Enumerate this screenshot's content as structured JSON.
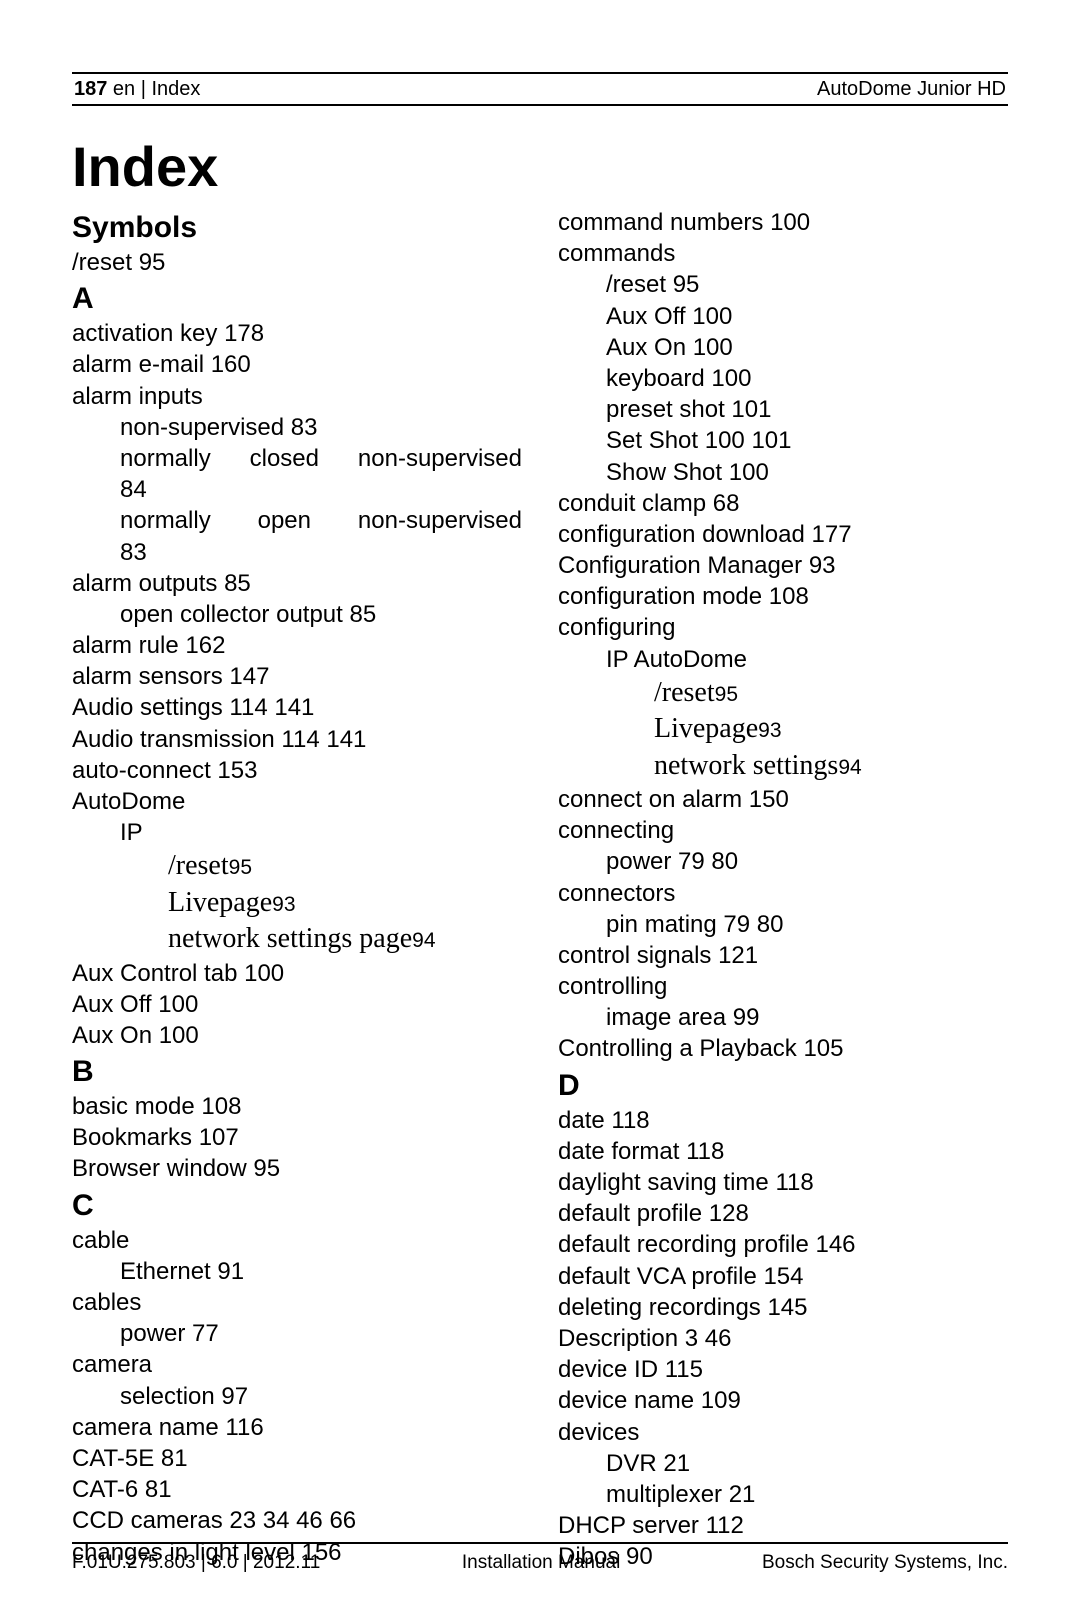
{
  "header": {
    "page_num": "187",
    "left_rest": " en | Index",
    "right": "AutoDome Junior HD"
  },
  "title": "Index",
  "footer": {
    "left": "F.01U.275.803 | 6.0 | 2012.11",
    "center": "Installation Manual",
    "right": "Bosch Security Systems, Inc."
  },
  "col_left": [
    {
      "t": "head",
      "v": "Symbols"
    },
    {
      "t": "line",
      "lvl": 0,
      "v": "/reset 95"
    },
    {
      "t": "head",
      "v": "A"
    },
    {
      "t": "line",
      "lvl": 0,
      "v": "activation key 178"
    },
    {
      "t": "line",
      "lvl": 0,
      "v": "alarm e-mail 160"
    },
    {
      "t": "line",
      "lvl": 0,
      "v": "alarm inputs"
    },
    {
      "t": "line",
      "lvl": 1,
      "v": "non-supervised 83"
    },
    {
      "t": "line",
      "lvl": 1,
      "justify": true,
      "v": "normally closed non-supervised"
    },
    {
      "t": "line",
      "lvl": 1,
      "v": "84"
    },
    {
      "t": "line",
      "lvl": 1,
      "justify": true,
      "v": "normally open non-supervised"
    },
    {
      "t": "line",
      "lvl": 1,
      "v": "83"
    },
    {
      "t": "line",
      "lvl": 0,
      "v": "alarm outputs 85"
    },
    {
      "t": "line",
      "lvl": 1,
      "v": "open collector output 85"
    },
    {
      "t": "line",
      "lvl": 0,
      "v": "alarm rule 162"
    },
    {
      "t": "line",
      "lvl": 0,
      "v": "alarm sensors 147"
    },
    {
      "t": "line",
      "lvl": 0,
      "v": "Audio settings 114, 141",
      "commas": true
    },
    {
      "t": "line",
      "lvl": 0,
      "v": "Audio transmission 114, 141",
      "commas": true
    },
    {
      "t": "line",
      "lvl": 0,
      "v": "auto-connect 153"
    },
    {
      "t": "line",
      "lvl": 0,
      "v": "AutoDome"
    },
    {
      "t": "line",
      "lvl": 1,
      "v": "IP"
    },
    {
      "t": "ser",
      "lvl": 2,
      "label": "/reset",
      "pg": "95"
    },
    {
      "t": "ser",
      "lvl": 2,
      "label": "Livepage",
      "pg": "93"
    },
    {
      "t": "ser",
      "lvl": 2,
      "label": "network settings page",
      "pg": "94"
    },
    {
      "t": "line",
      "lvl": 0,
      "v": "Aux Control tab 100"
    },
    {
      "t": "line",
      "lvl": 0,
      "v": "Aux Off 100"
    },
    {
      "t": "line",
      "lvl": 0,
      "v": "Aux On 100"
    },
    {
      "t": "head",
      "v": "B"
    },
    {
      "t": "line",
      "lvl": 0,
      "v": "basic mode 108"
    },
    {
      "t": "line",
      "lvl": 0,
      "v": "Bookmarks 107"
    },
    {
      "t": "line",
      "lvl": 0,
      "v": "Browser window 95"
    },
    {
      "t": "head",
      "v": "C"
    },
    {
      "t": "line",
      "lvl": 0,
      "v": "cable"
    },
    {
      "t": "line",
      "lvl": 1,
      "v": "Ethernet 91"
    },
    {
      "t": "line",
      "lvl": 0,
      "v": "cables"
    },
    {
      "t": "line",
      "lvl": 1,
      "v": "power 77"
    },
    {
      "t": "line",
      "lvl": 0,
      "v": "camera"
    },
    {
      "t": "line",
      "lvl": 1,
      "v": "selection 97"
    },
    {
      "t": "line",
      "lvl": 0,
      "v": "camera name 116"
    },
    {
      "t": "line",
      "lvl": 0,
      "v": "CAT-5E 81"
    },
    {
      "t": "line",
      "lvl": 0,
      "v": "CAT-6 81"
    },
    {
      "t": "line",
      "lvl": 0,
      "v": "CCD cameras 23, 34, 46, 66",
      "commas": true
    },
    {
      "t": "line",
      "lvl": 0,
      "v": "changes in light level 156"
    }
  ],
  "col_right": [
    {
      "t": "line",
      "lvl": 0,
      "v": "command numbers 100"
    },
    {
      "t": "line",
      "lvl": 0,
      "v": "commands"
    },
    {
      "t": "line",
      "lvl": 1,
      "v": "/reset 95"
    },
    {
      "t": "line",
      "lvl": 1,
      "v": "Aux Off 100"
    },
    {
      "t": "line",
      "lvl": 1,
      "v": "Aux On 100"
    },
    {
      "t": "line",
      "lvl": 1,
      "v": "keyboard 100"
    },
    {
      "t": "line",
      "lvl": 1,
      "v": "preset shot 101"
    },
    {
      "t": "line",
      "lvl": 1,
      "v": "Set Shot 100, 101",
      "commas": true
    },
    {
      "t": "line",
      "lvl": 1,
      "v": "Show Shot 100"
    },
    {
      "t": "line",
      "lvl": 0,
      "v": "conduit clamp 68"
    },
    {
      "t": "line",
      "lvl": 0,
      "v": "configuration download 177"
    },
    {
      "t": "line",
      "lvl": 0,
      "v": "Configuration Manager 93"
    },
    {
      "t": "line",
      "lvl": 0,
      "v": "configuration mode 108"
    },
    {
      "t": "line",
      "lvl": 0,
      "v": "configuring"
    },
    {
      "t": "line",
      "lvl": 1,
      "v": "IP AutoDome"
    },
    {
      "t": "ser",
      "lvl": 2,
      "label": "/reset",
      "pg": "95"
    },
    {
      "t": "ser",
      "lvl": 2,
      "label": "Livepage",
      "pg": "93"
    },
    {
      "t": "ser",
      "lvl": 2,
      "label": "network settings",
      "pg": "94"
    },
    {
      "t": "line",
      "lvl": 0,
      "v": "connect on alarm 150"
    },
    {
      "t": "line",
      "lvl": 0,
      "v": "connecting"
    },
    {
      "t": "line",
      "lvl": 1,
      "v": "power 79, 80",
      "commas": true
    },
    {
      "t": "line",
      "lvl": 0,
      "v": "connectors"
    },
    {
      "t": "line",
      "lvl": 1,
      "v": "pin mating 79, 80",
      "commas": true
    },
    {
      "t": "line",
      "lvl": 0,
      "v": "control signals 121"
    },
    {
      "t": "line",
      "lvl": 0,
      "v": "controlling"
    },
    {
      "t": "line",
      "lvl": 1,
      "v": "image area 99"
    },
    {
      "t": "line",
      "lvl": 0,
      "v": "Controlling a Playback 105"
    },
    {
      "t": "head",
      "v": "D"
    },
    {
      "t": "line",
      "lvl": 0,
      "v": "date 118"
    },
    {
      "t": "line",
      "lvl": 0,
      "v": "date format 118"
    },
    {
      "t": "line",
      "lvl": 0,
      "v": "daylight saving time 118"
    },
    {
      "t": "line",
      "lvl": 0,
      "v": "default profile 128"
    },
    {
      "t": "line",
      "lvl": 0,
      "v": "default recording profile 146"
    },
    {
      "t": "line",
      "lvl": 0,
      "v": "default VCA profile 154"
    },
    {
      "t": "line",
      "lvl": 0,
      "v": "deleting recordings 145"
    },
    {
      "t": "line",
      "lvl": 0,
      "v": "Description 3, 46",
      "commas": true
    },
    {
      "t": "line",
      "lvl": 0,
      "v": "device ID 115"
    },
    {
      "t": "line",
      "lvl": 0,
      "v": "device name 109"
    },
    {
      "t": "line",
      "lvl": 0,
      "v": "devices"
    },
    {
      "t": "line",
      "lvl": 1,
      "v": "DVR 21"
    },
    {
      "t": "line",
      "lvl": 1,
      "v": "multiplexer 21"
    },
    {
      "t": "line",
      "lvl": 0,
      "v": "DHCP server 112"
    },
    {
      "t": "line",
      "lvl": 0,
      "v": "Dibos 90"
    }
  ]
}
